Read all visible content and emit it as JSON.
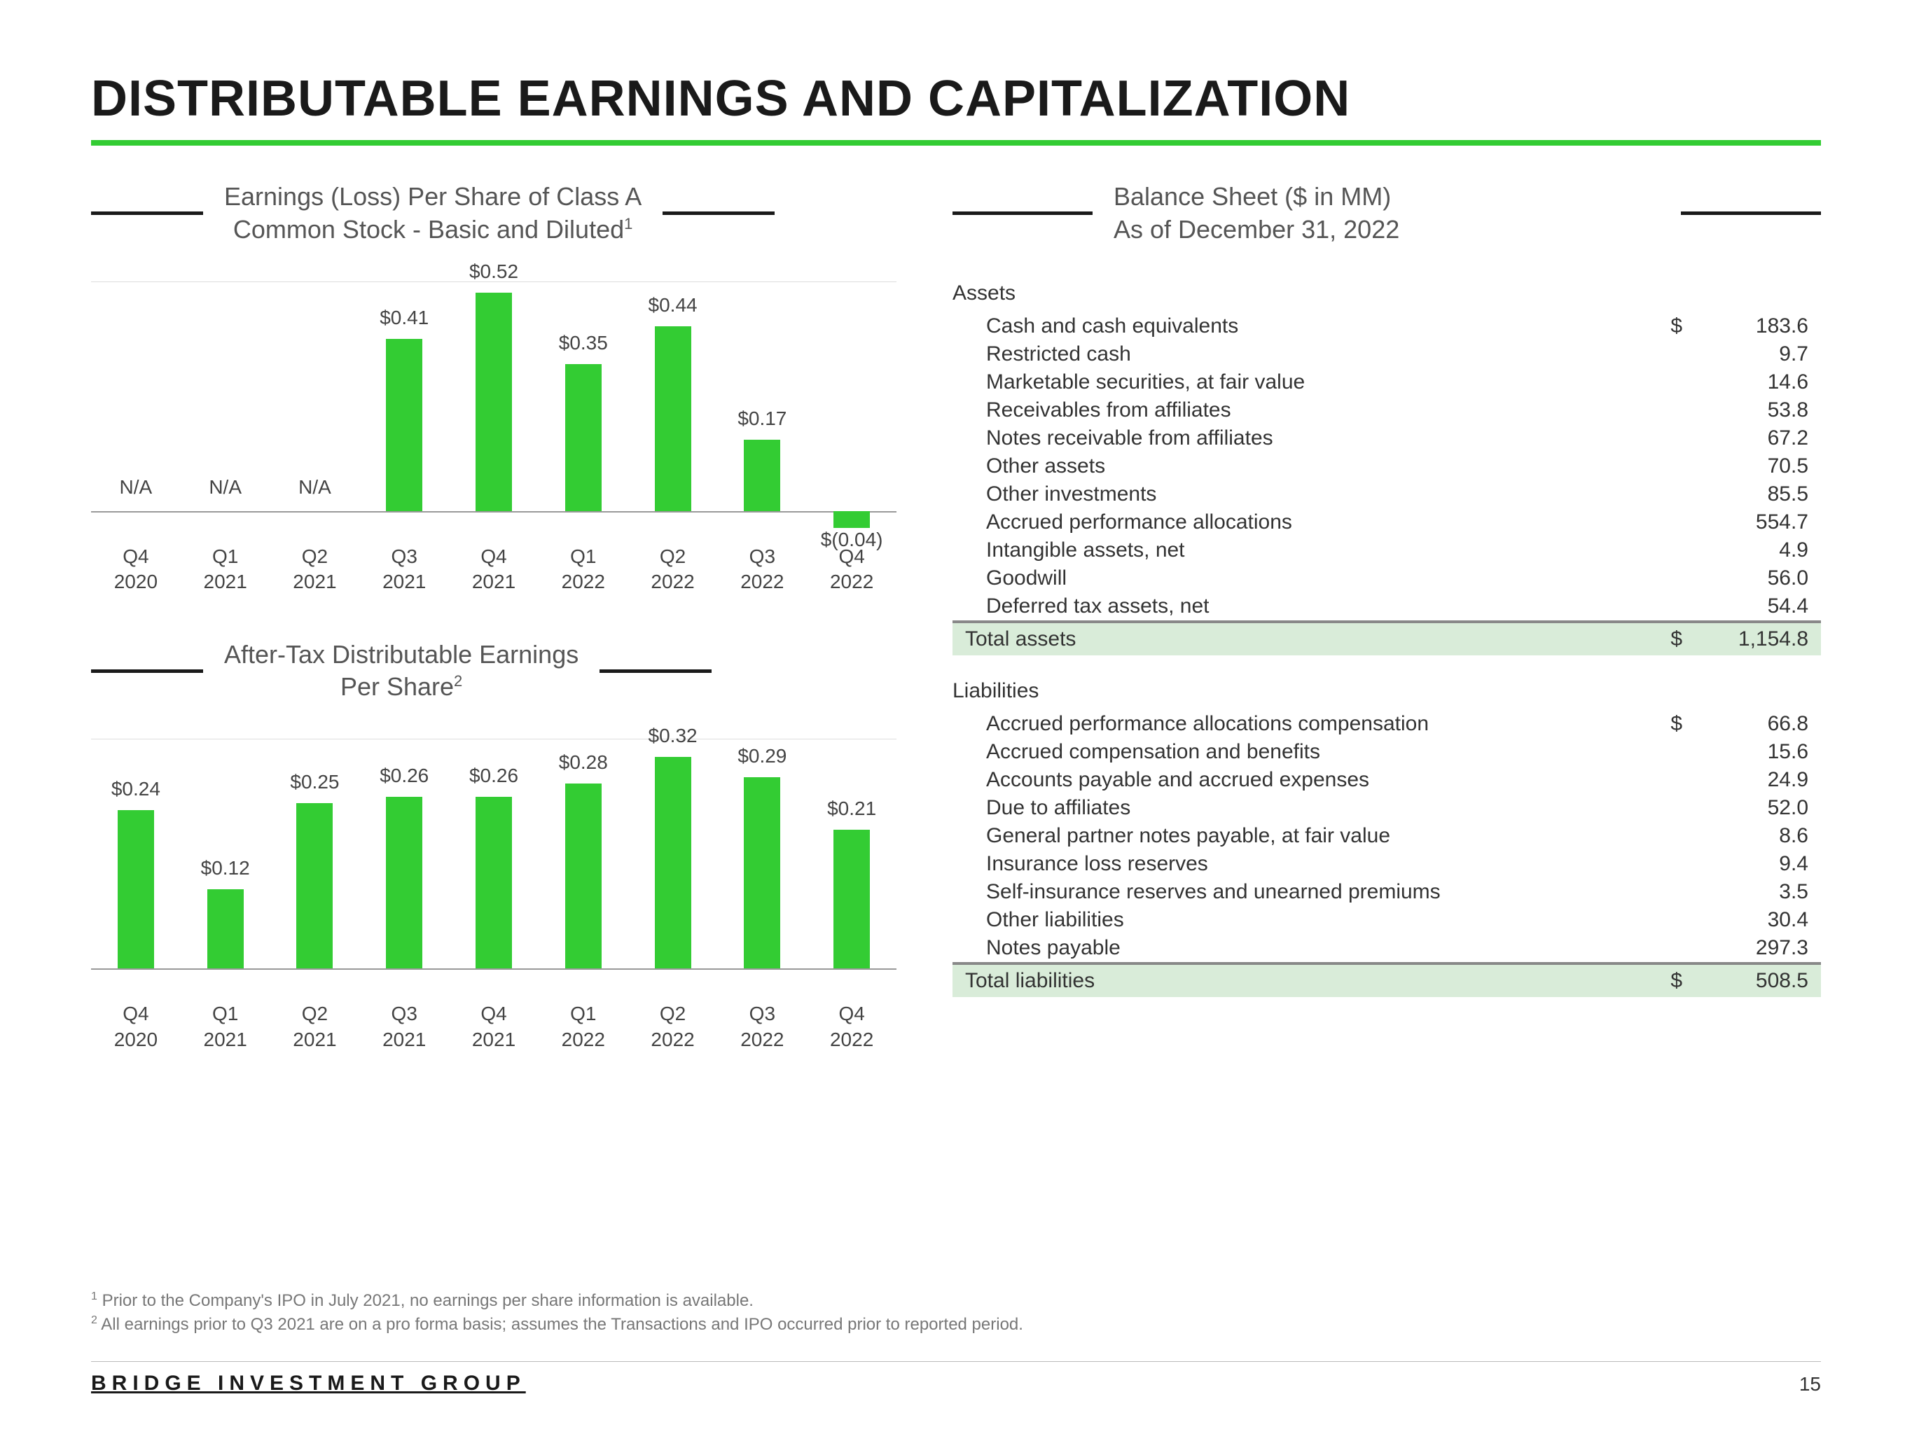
{
  "page_title": "DISTRIBUTABLE EARNINGS AND CAPITALIZATION",
  "accent_color": "#33cc33",
  "bar_color": "#33cc33",
  "text_color": "#333333",
  "chart1": {
    "title_line1": "Earnings (Loss) Per Share of Class A",
    "title_line2": "Common Stock - Basic and Diluted",
    "title_sup": "1",
    "ymax": 0.55,
    "categories": [
      {
        "q": "Q4",
        "y": "2020",
        "label": "N/A",
        "value": null
      },
      {
        "q": "Q1",
        "y": "2021",
        "label": "N/A",
        "value": null
      },
      {
        "q": "Q2",
        "y": "2021",
        "label": "N/A",
        "value": null
      },
      {
        "q": "Q3",
        "y": "2021",
        "label": "$0.41",
        "value": 0.41
      },
      {
        "q": "Q4",
        "y": "2021",
        "label": "$0.52",
        "value": 0.52
      },
      {
        "q": "Q1",
        "y": "2022",
        "label": "$0.35",
        "value": 0.35
      },
      {
        "q": "Q2",
        "y": "2022",
        "label": "$0.44",
        "value": 0.44
      },
      {
        "q": "Q3",
        "y": "2022",
        "label": "$0.17",
        "value": 0.17
      },
      {
        "q": "Q4",
        "y": "2022",
        "label": "$(0.04)",
        "value": -0.04
      }
    ]
  },
  "chart2": {
    "title_line1": "After-Tax Distributable Earnings",
    "title_line2": "Per Share",
    "title_sup": "2",
    "ymax": 0.35,
    "categories": [
      {
        "q": "Q4",
        "y": "2020",
        "label": "$0.24",
        "value": 0.24
      },
      {
        "q": "Q1",
        "y": "2021",
        "label": "$0.12",
        "value": 0.12
      },
      {
        "q": "Q2",
        "y": "2021",
        "label": "$0.25",
        "value": 0.25
      },
      {
        "q": "Q3",
        "y": "2021",
        "label": "$0.26",
        "value": 0.26
      },
      {
        "q": "Q4",
        "y": "2021",
        "label": "$0.26",
        "value": 0.26
      },
      {
        "q": "Q1",
        "y": "2022",
        "label": "$0.28",
        "value": 0.28
      },
      {
        "q": "Q2",
        "y": "2022",
        "label": "$0.32",
        "value": 0.32
      },
      {
        "q": "Q3",
        "y": "2022",
        "label": "$0.29",
        "value": 0.29
      },
      {
        "q": "Q4",
        "y": "2022",
        "label": "$0.21",
        "value": 0.21
      }
    ]
  },
  "balance_sheet": {
    "title_line1": "Balance Sheet ($ in MM)",
    "title_line2": "As of December 31, 2022",
    "assets_label": "Assets",
    "assets": [
      {
        "name": "Cash and cash equivalents",
        "dollar": "$",
        "value": "183.6"
      },
      {
        "name": "Restricted cash",
        "dollar": "",
        "value": "9.7"
      },
      {
        "name": "Marketable securities, at fair value",
        "dollar": "",
        "value": "14.6"
      },
      {
        "name": "Receivables from affiliates",
        "dollar": "",
        "value": "53.8"
      },
      {
        "name": "Notes receivable from affiliates",
        "dollar": "",
        "value": "67.2"
      },
      {
        "name": "Other assets",
        "dollar": "",
        "value": "70.5"
      },
      {
        "name": "Other investments",
        "dollar": "",
        "value": "85.5"
      },
      {
        "name": "Accrued performance allocations",
        "dollar": "",
        "value": "554.7"
      },
      {
        "name": "Intangible assets, net",
        "dollar": "",
        "value": "4.9"
      },
      {
        "name": "Goodwill",
        "dollar": "",
        "value": "56.0"
      },
      {
        "name": "Deferred tax assets, net",
        "dollar": "",
        "value": "54.4"
      }
    ],
    "assets_total": {
      "name": "Total assets",
      "dollar": "$",
      "value": "1,154.8"
    },
    "liabilities_label": "Liabilities",
    "liabilities": [
      {
        "name": "Accrued performance allocations compensation",
        "dollar": "$",
        "value": "66.8"
      },
      {
        "name": "Accrued compensation and benefits",
        "dollar": "",
        "value": "15.6"
      },
      {
        "name": "Accounts payable and accrued expenses",
        "dollar": "",
        "value": "24.9"
      },
      {
        "name": "Due to affiliates",
        "dollar": "",
        "value": "52.0"
      },
      {
        "name": "General partner notes payable, at fair value",
        "dollar": "",
        "value": "8.6"
      },
      {
        "name": "Insurance loss reserves",
        "dollar": "",
        "value": "9.4"
      },
      {
        "name": "Self-insurance reserves and unearned premiums",
        "dollar": "",
        "value": "3.5"
      },
      {
        "name": "Other liabilities",
        "dollar": "",
        "value": "30.4"
      },
      {
        "name": "Notes payable",
        "dollar": "",
        "value": "297.3"
      }
    ],
    "liabilities_total": {
      "name": "Total liabilities",
      "dollar": "$",
      "value": "508.5"
    }
  },
  "footnotes": {
    "f1": "Prior to the Company's IPO in July 2021, no earnings per share information is available.",
    "f2": "All earnings prior to Q3 2021 are on a pro forma basis; assumes the Transactions and IPO occurred prior to reported period."
  },
  "footer": {
    "brand": "BRIDGE INVESTMENT GROUP",
    "page": "15"
  }
}
